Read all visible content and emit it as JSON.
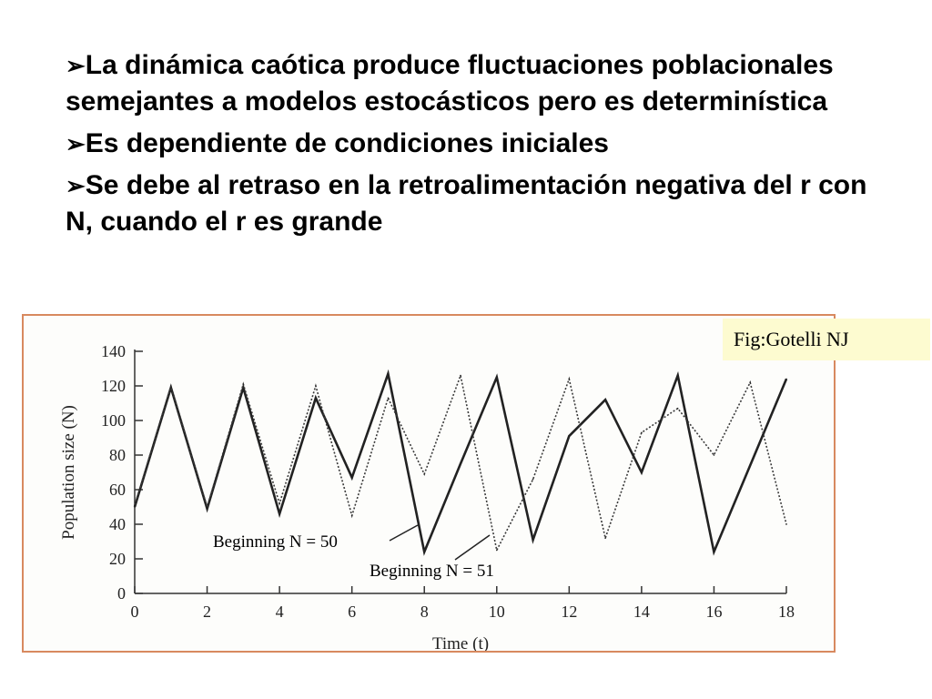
{
  "bullets": [
    "La dinámica caótica produce fluctuaciones poblacionales semejantes a modelos estocásticos pero es determinística",
    "Es dependiente de condiciones iniciales",
    "Se debe al retraso en la retroalimentación negativa del r con N, cuando el r es grande"
  ],
  "bullet_icon": "arrow-bullet-icon",
  "credit": "Fig:Gotelli NJ",
  "colors": {
    "frame": "#d8895f",
    "credit_bg": "#fdfbd0",
    "line": "#222222"
  },
  "chart_data": {
    "type": "line",
    "xlabel": "Time (t)",
    "ylabel": "Population size (N)",
    "xlim": [
      0,
      18
    ],
    "ylim": [
      0,
      140
    ],
    "xticks": [
      "0",
      "2",
      "4",
      "6",
      "8",
      "10",
      "12",
      "14",
      "16",
      "18"
    ],
    "yticks": [
      "0",
      "20",
      "40",
      "60",
      "80",
      "100",
      "120",
      "140"
    ],
    "x": [
      0,
      1,
      2,
      3,
      4,
      5,
      6,
      7,
      8,
      9,
      10,
      11,
      12,
      13,
      14,
      15,
      16,
      17,
      18
    ],
    "series": [
      {
        "name": "Beginning N = 50",
        "values": [
          50,
          119,
          49,
          119,
          46,
          113,
          67,
          127,
          24,
          75,
          125,
          31,
          91,
          112,
          70,
          126,
          24,
          74,
          124
        ]
      },
      {
        "name": "Beginning N = 51",
        "values": [
          51,
          120,
          50,
          121,
          52,
          120,
          45,
          113,
          69,
          126,
          25,
          66,
          124,
          32,
          93,
          107,
          80,
          122,
          40
        ]
      }
    ],
    "annotations": [
      "Beginning N = 50",
      "Beginning N = 51"
    ]
  }
}
